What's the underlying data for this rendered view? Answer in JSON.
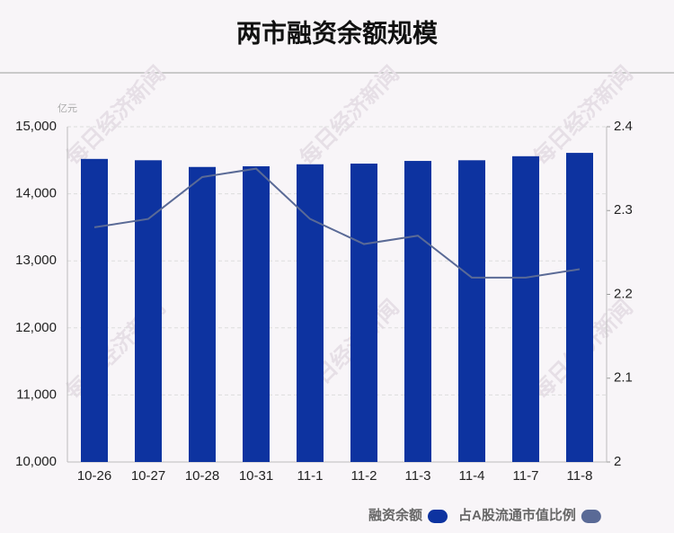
{
  "chart_data": {
    "type": "bar_line",
    "title": "两市融资余额规模",
    "y_unit": "亿元",
    "watermark": "每日经济新闻",
    "categories": [
      "10-26",
      "10-27",
      "10-28",
      "10-31",
      "11-1",
      "11-2",
      "11-3",
      "11-4",
      "11-7",
      "11-8"
    ],
    "series": [
      {
        "name": "融资余额",
        "color": "#0d33a0",
        "type": "bar",
        "values": [
          14520,
          14500,
          14400,
          14410,
          14440,
          14450,
          14490,
          14500,
          14560,
          14610
        ]
      },
      {
        "name": "占A股流通市值比例",
        "color": "#5a6a96",
        "type": "line",
        "axis": "y2",
        "values": [
          2.28,
          2.29,
          2.34,
          2.35,
          2.29,
          2.26,
          2.27,
          2.22,
          2.22,
          2.23
        ]
      }
    ],
    "ylim": [
      10000,
      15000
    ],
    "yticks": [
      {
        "value": 10000,
        "label": "10,000"
      },
      {
        "value": 11000,
        "label": "11,000"
      },
      {
        "value": 12000,
        "label": "12,000"
      },
      {
        "value": 13000,
        "label": "13,000"
      },
      {
        "value": 14000,
        "label": "14,000"
      },
      {
        "value": 15000,
        "label": "15,000"
      }
    ],
    "y2lim": [
      2,
      2.4
    ],
    "y2ticks": [
      2,
      2.1,
      2.2,
      2.3,
      2.4
    ],
    "grid": true
  }
}
